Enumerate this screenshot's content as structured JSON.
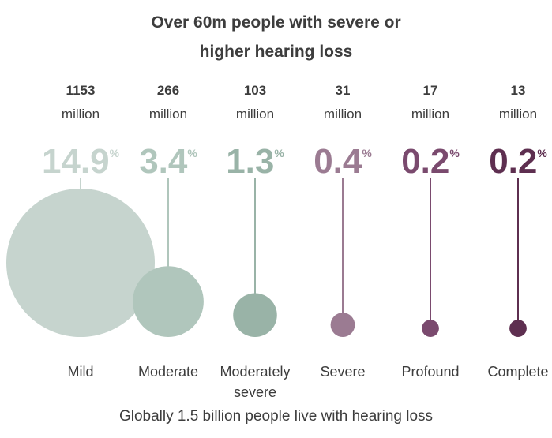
{
  "title": {
    "line1": "Over 60m people with severe or",
    "line2": "higher hearing loss"
  },
  "footnote": "Globally 1.5 billion people live with hearing loss",
  "colors": {
    "Mild": "#c6d4ce",
    "Moderate": "#b0c6bc",
    "Moderately severe": "#99b3a7",
    "Severe": "#9b7b92",
    "Profound": "#7a4a6e",
    "Complete": "#5e2f50",
    "text": "#3d3d3d"
  },
  "chart_data": {
    "type": "bubble",
    "title": "Over 60m people with severe or higher hearing loss",
    "count_unit": "million",
    "percent_unit": "%",
    "categories": [
      {
        "name": "Mild",
        "label_lines": [
          "Mild"
        ],
        "count": "1153",
        "percent": "14.9",
        "value": 14.9
      },
      {
        "name": "Moderate",
        "label_lines": [
          "Moderate"
        ],
        "count": "266",
        "percent": "3.4",
        "value": 3.4
      },
      {
        "name": "Moderately severe",
        "label_lines": [
          "Moderately",
          "severe"
        ],
        "count": "103",
        "percent": "1.3",
        "value": 1.3
      },
      {
        "name": "Severe",
        "label_lines": [
          "Severe"
        ],
        "count": "31",
        "percent": "0.4",
        "value": 0.4
      },
      {
        "name": "Profound",
        "label_lines": [
          "Profound"
        ],
        "count": "17",
        "percent": "0.2",
        "value": 0.2
      },
      {
        "name": "Complete",
        "label_lines": [
          "Complete"
        ],
        "count": "13",
        "percent": "0.2",
        "value": 0.2
      }
    ],
    "footnote": "Globally 1.5 billion people live with hearing loss"
  }
}
